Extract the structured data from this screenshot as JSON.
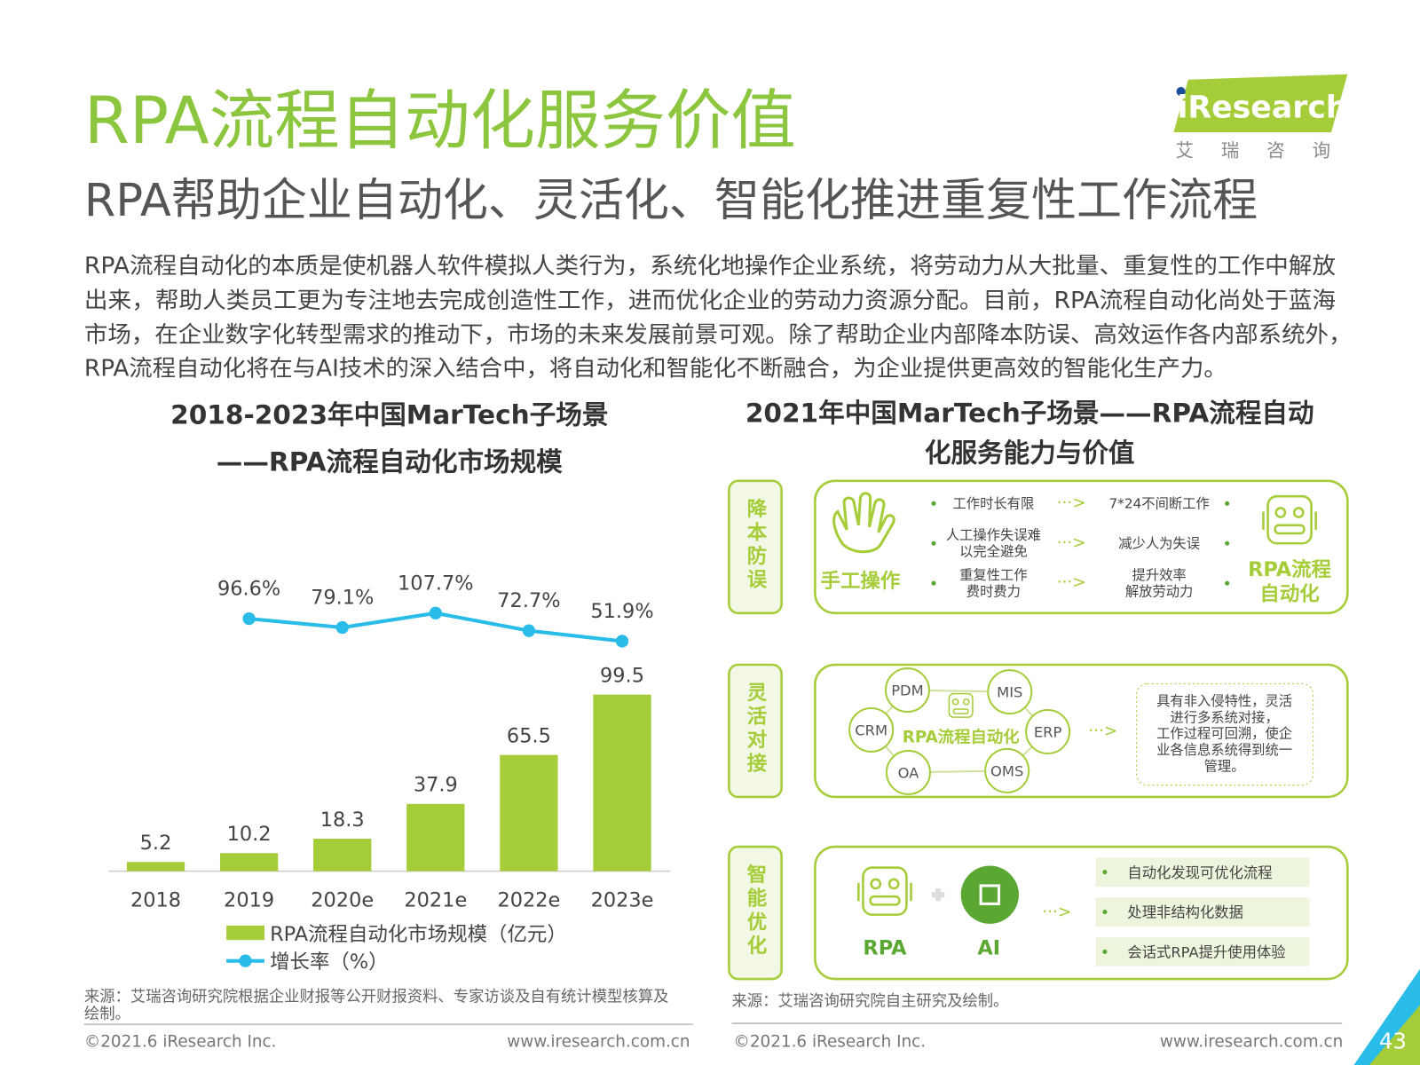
{
  "header": {
    "title": "RPA流程自动化服务价值",
    "subtitle": "RPA帮助企业自动化、灵活化、智能化推进重复性工作流程",
    "logo": "iResearch",
    "logo_cn": "艾 瑞 咨 询"
  },
  "body": [
    "RPA流程自动化的本质是使机器人软件模拟人类行为，系统化地操作企业系统，将劳动力从大批量、重复性的工作中解放",
    "出来，帮助人类员工更为专注地去完成创造性工作，进而优化企业的劳动力资源分配。目前，RPA流程自动化尚处于蓝海",
    "市场，在企业数字化转型需求的推动下，市场的未来发展前景可观。除了帮助企业内部降本防误、高效运作各内部系统外，",
    "RPA流程自动化将在与AI技术的深入结合中，将自动化和智能化不断融合，为企业提供更高效的智能化生产力。"
  ],
  "chart_data": {
    "type": "bar",
    "title": [
      "2018-2023年中国MarTech子场景",
      "——RPA流程自动化市场规模"
    ],
    "categories": [
      "2018",
      "2019",
      "2020e",
      "2021e",
      "2022e",
      "2023e"
    ],
    "series": [
      {
        "name": "RPA流程自动化市场规模（亿元）",
        "color": "#a5cd39",
        "values": [
          5.2,
          10.2,
          18.3,
          37.9,
          65.5,
          99.5
        ]
      },
      {
        "name": "增长率（%）",
        "type": "line",
        "color": "#29bce8",
        "values": [
          null,
          96.6,
          79.1,
          107.7,
          72.7,
          51.9
        ],
        "value_labels": [
          null,
          "96.6%",
          "79.1%",
          "107.7%",
          "72.7%",
          "51.9%"
        ]
      }
    ],
    "source": [
      "来源：艾瑞咨询研究院根据企业财报等公开财报资料、专家访谈及自有统计模型核算及",
      "绘制。"
    ]
  },
  "diagram": {
    "title": [
      "2021年中国MarTech子场景——RPA流程自动",
      "化服务能力与价值"
    ],
    "rows": [
      {
        "label": "降本防误",
        "left": "手工操作",
        "right": [
          "RPA流程",
          "自动化"
        ],
        "pairs": [
          {
            "from": [
              "工作时长有限"
            ],
            "to": [
              "7*24不间断工作"
            ]
          },
          {
            "from": [
              "人工操作失误难",
              "以完全避免"
            ],
            "to": [
              "减少人为失误"
            ]
          },
          {
            "from": [
              "重复性工作",
              "费时费力"
            ],
            "to": [
              "提升效率",
              "解放劳动力"
            ]
          }
        ]
      },
      {
        "label": "灵活对接",
        "center": "RPA流程自动化",
        "nodes": [
          "PDM",
          "MIS",
          "CRM",
          "ERP",
          "OA",
          "OMS"
        ],
        "note": [
          "具有非入侵特性，灵活",
          "进行多系统对接，",
          "工作过程可回溯，使企",
          "业各信息系统得到统一",
          "管理。"
        ]
      },
      {
        "label": "智能优化",
        "left": "RPA",
        "right": "AI",
        "items": [
          "自动化发现可优化流程",
          "处理非结构化数据",
          "会话式RPA提升使用体验"
        ]
      }
    ],
    "source": "来源：艾瑞咨询研究院自主研究及绘制。"
  },
  "footer": {
    "copyright": "©2021.6 iResearch Inc.",
    "url": "www.iresearch.com.cn",
    "page": 43
  }
}
